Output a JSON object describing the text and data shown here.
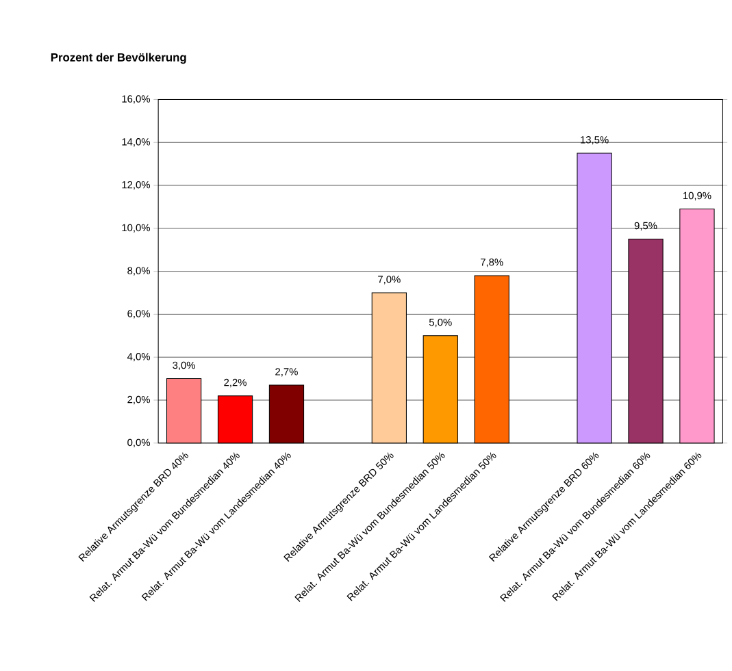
{
  "chart_data": {
    "type": "bar",
    "title": "Prozent der Bevölkerung",
    "categories": [
      "Relative Armutsgrenze BRD 40%",
      "Relat. Armut Ba-Wü vom Bundesmedian 40%",
      "Relat. Armut Ba-Wü vom Landesmedian 40%",
      null,
      "Relative Armutsgrenze BRD 50%",
      "Relat. Armut Ba-Wü vom Bundesmedian 50%",
      "Relat. Armut Ba-Wü vom Landesmedian 50%",
      null,
      "Relative Armutsgrenze BRD 60%",
      "Relat. Armut Ba-Wü vom Bundesmedian 60%",
      "Relat. Armut Ba-Wü vom Landesmedian 60%"
    ],
    "values": [
      3.0,
      2.2,
      2.7,
      null,
      7.0,
      5.0,
      7.8,
      null,
      13.5,
      9.5,
      10.9
    ],
    "value_labels": [
      "3,0%",
      "2,2%",
      "2,7%",
      null,
      "7,0%",
      "5,0%",
      "7,8%",
      null,
      "13,5%",
      "9,5%",
      "10,9%"
    ],
    "colors": [
      "#ff8080",
      "#ff0000",
      "#800000",
      null,
      "#ffcc99",
      "#ff9900",
      "#ff6600",
      null,
      "#cc99ff",
      "#993366",
      "#ff99cc"
    ],
    "ylim": [
      0,
      16
    ],
    "yticks": [
      {
        "value": 0,
        "label": "0,0%"
      },
      {
        "value": 2,
        "label": "2,0%"
      },
      {
        "value": 4,
        "label": "4,0%"
      },
      {
        "value": 6,
        "label": "6,0%"
      },
      {
        "value": 8,
        "label": "8,0%"
      },
      {
        "value": 10,
        "label": "10,0%"
      },
      {
        "value": 12,
        "label": "12,0%"
      },
      {
        "value": 14,
        "label": "14,0%"
      },
      {
        "value": 16,
        "label": "16,0%"
      }
    ],
    "grid": "y"
  }
}
